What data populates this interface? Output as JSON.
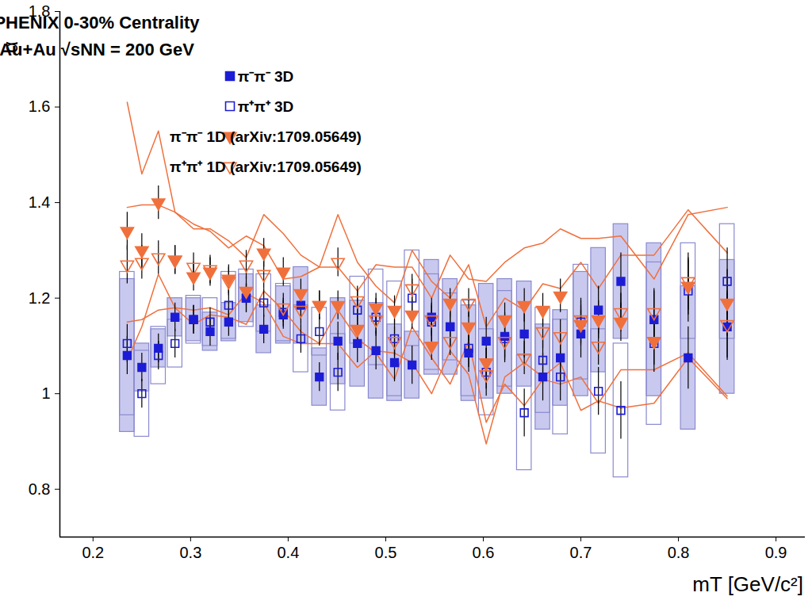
{
  "chart_data": {
    "type": "scatter",
    "title": "PHENIX 0-30% Centrality",
    "subtitle": "Au+Au √sNN = 200 GeV",
    "x_label": "mT [GeV/c²]",
    "y_label": "α",
    "xlim": [
      0.166,
      0.93
    ],
    "ylim": [
      0.7,
      1.8
    ],
    "xticks": [
      0.2,
      0.3,
      0.4,
      0.5,
      0.6,
      0.7,
      0.8,
      0.9
    ],
    "yticks": [
      0.8,
      1,
      1.2,
      1.4,
      1.6,
      1.8
    ],
    "legend": "top",
    "x": [
      0.235,
      0.25,
      0.267,
      0.284,
      0.303,
      0.32,
      0.339,
      0.357,
      0.375,
      0.395,
      0.413,
      0.432,
      0.451,
      0.471,
      0.49,
      0.509,
      0.527,
      0.547,
      0.566,
      0.585,
      0.603,
      0.622,
      0.642,
      0.661,
      0.679,
      0.7,
      0.718,
      0.741,
      0.775,
      0.81,
      0.85
    ],
    "series": [
      {
        "name": "π⁻π⁻ 3D",
        "color": "#1c1cd6",
        "marker": "filled_square",
        "values": [
          1.08,
          1.055,
          1.095,
          1.16,
          1.155,
          1.13,
          1.15,
          1.2,
          1.135,
          1.165,
          1.185,
          1.035,
          1.11,
          1.105,
          1.09,
          1.065,
          1.06,
          1.16,
          1.14,
          1.085,
          1.11,
          1.12,
          1.125,
          1.035,
          1.075,
          1.125,
          1.175,
          1.235,
          1.155,
          1.075,
          1.14
        ],
        "errors": [
          0.04,
          0.03,
          0.03,
          0.03,
          0.03,
          0.03,
          0.03,
          0.03,
          0.03,
          0.03,
          0.03,
          0.03,
          0.04,
          0.04,
          0.04,
          0.04,
          0.04,
          0.04,
          0.04,
          0.04,
          0.05,
          0.05,
          0.05,
          0.05,
          0.05,
          0.05,
          0.05,
          0.06,
          0.06,
          0.065,
          0.07
        ],
        "sys_errors": [
          0.16,
          0.05,
          0.04,
          0.04,
          0.045,
          0.04,
          0.04,
          0.05,
          0.05,
          0.06,
          0.08,
          0.06,
          0.09,
          0.09,
          0.1,
          0.08,
          0.07,
          0.12,
          0.1,
          0.1,
          0.12,
          0.12,
          0.11,
          0.11,
          0.1,
          0.13,
          0.13,
          0.12,
          0.16,
          0.15,
          0.14
        ]
      },
      {
        "name": "π⁺π⁺ 3D",
        "color": "#1c1cd6",
        "marker": "open_square",
        "values": [
          1.105,
          1.0,
          1.08,
          1.105,
          1.155,
          1.15,
          1.185,
          1.2,
          1.19,
          1.17,
          1.115,
          1.13,
          1.045,
          1.175,
          1.16,
          1.115,
          1.2,
          1.15,
          1.14,
          1.095,
          1.045,
          1.115,
          0.96,
          1.07,
          1.035,
          1.15,
          1.005,
          0.965,
          1.105,
          1.215,
          1.235
        ],
        "errors": [
          0.04,
          0.03,
          0.03,
          0.03,
          0.03,
          0.03,
          0.03,
          0.03,
          0.03,
          0.03,
          0.03,
          0.03,
          0.04,
          0.04,
          0.04,
          0.04,
          0.04,
          0.04,
          0.04,
          0.04,
          0.05,
          0.05,
          0.05,
          0.05,
          0.05,
          0.05,
          0.05,
          0.06,
          0.06,
          0.065,
          0.07
        ],
        "sys_errors": [
          0.15,
          0.09,
          0.06,
          0.05,
          0.05,
          0.05,
          0.07,
          0.06,
          0.06,
          0.06,
          0.07,
          0.05,
          0.08,
          0.07,
          0.1,
          0.12,
          0.1,
          0.1,
          0.07,
          0.1,
          0.09,
          0.1,
          0.12,
          0.11,
          0.12,
          0.12,
          0.13,
          0.14,
          0.17,
          0.1,
          0.12
        ]
      },
      {
        "name": "π⁻π⁻ 1D (arXiv:1709.05649)",
        "color": "#f0703c",
        "marker": "filled_triangle_down",
        "values": [
          1.34,
          1.3,
          1.4,
          1.28,
          1.245,
          1.255,
          1.24,
          1.215,
          1.295,
          1.255,
          1.21,
          1.185,
          1.185,
          1.135,
          1.18,
          1.175,
          1.165,
          1.1,
          1.19,
          1.14,
          1.065,
          1.155,
          1.185,
          1.175,
          1.205,
          1.145,
          1.155,
          1.15,
          1.11,
          1.225,
          1.19
        ],
        "errors": [
          0.04,
          0.035,
          0.035,
          0.03,
          0.03,
          0.03,
          0.03,
          0.03,
          0.03,
          0.03,
          0.03,
          0.03,
          0.03,
          0.03,
          0.03,
          0.03,
          0.03,
          0.03,
          0.03,
          0.03,
          0.03,
          0.035,
          0.035,
          0.035,
          0.035,
          0.04,
          0.04,
          0.04,
          0.05,
          0.06,
          0.07
        ],
        "sys_errors": [
          0.27,
          0.16,
          0.15,
          0.1,
          0.1,
          0.09,
          0.08,
          0.07,
          0.08,
          0.08,
          0.08,
          0.08,
          0.08,
          0.08,
          0.09,
          0.09,
          0.1,
          0.1,
          0.1,
          0.1,
          0.17,
          0.12,
          0.12,
          0.14,
          0.14,
          0.18,
          0.17,
          0.18,
          0.13,
          0.15,
          0.2
        ]
      },
      {
        "name": "π⁺π⁺ 1D (arXiv:1709.05649)",
        "color": "#f0703c",
        "marker": "open_triangle_down",
        "values": [
          1.27,
          1.275,
          1.285,
          1.28,
          1.265,
          1.26,
          1.235,
          1.27,
          1.25,
          1.18,
          1.175,
          1.185,
          1.275,
          1.195,
          1.155,
          1.11,
          1.22,
          1.155,
          1.11,
          1.19,
          1.04,
          1.11,
          1.075,
          1.13,
          1.12,
          1.155,
          1.1,
          1.17,
          1.17,
          1.235,
          1.145
        ],
        "errors": [
          0.04,
          0.035,
          0.035,
          0.03,
          0.03,
          0.03,
          0.03,
          0.03,
          0.03,
          0.03,
          0.03,
          0.03,
          0.03,
          0.03,
          0.03,
          0.03,
          0.03,
          0.03,
          0.03,
          0.03,
          0.03,
          0.035,
          0.035,
          0.035,
          0.035,
          0.04,
          0.04,
          0.04,
          0.05,
          0.06,
          0.07
        ],
        "sys_errors": [
          0.12,
          0.12,
          0.11,
          0.1,
          0.09,
          0.08,
          0.07,
          0.06,
          0.06,
          0.06,
          0.07,
          0.08,
          0.1,
          0.08,
          0.07,
          0.08,
          0.08,
          0.08,
          0.09,
          0.08,
          0.1,
          0.09,
          0.1,
          0.1,
          0.1,
          0.12,
          0.12,
          0.12,
          0.12,
          0.15,
          0.15
        ]
      }
    ]
  }
}
